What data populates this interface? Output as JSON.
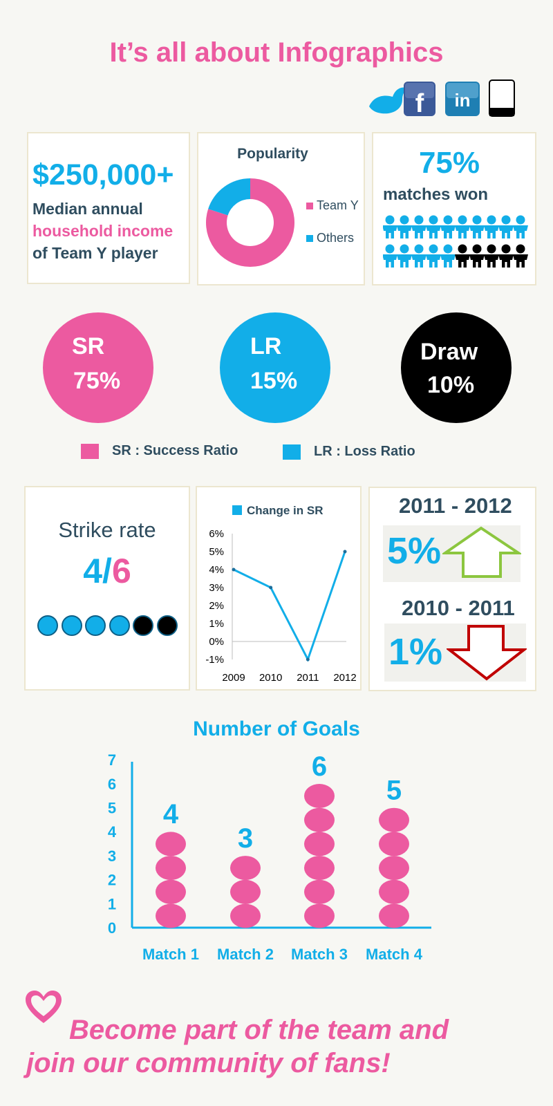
{
  "header": {
    "title": "It’s all about Infographics",
    "social_icons": [
      "bird-icon",
      "facebook-icon",
      "linkedin-icon",
      "tablet-icon"
    ],
    "facebook_glyph": "f",
    "linkedin_glyph": "in"
  },
  "income": {
    "amount": "$250,000+",
    "line1": "Median annual",
    "line2": "household income",
    "line3": "of Team Y player"
  },
  "popularity": {
    "title": "Popularity",
    "legend": [
      "Team Y",
      "Others"
    ]
  },
  "matches": {
    "percent": "75%",
    "label": "matches won",
    "won_fraction": 0.75
  },
  "ratios": [
    {
      "label": "SR",
      "value": "75%",
      "color": "#ec5aa0"
    },
    {
      "label": "LR",
      "value": "15%",
      "color": "#12aee8"
    },
    {
      "label": "Draw",
      "value": "10%",
      "color": "#000000"
    }
  ],
  "ratio_key": {
    "sr": "SR : Success Ratio",
    "lr": "LR : Loss Ratio"
  },
  "strike": {
    "label": "Strike rate",
    "num": "4",
    "slash": "/",
    "den": "6"
  },
  "trend": [
    {
      "period": "2011 - 2012",
      "value": "5%",
      "direction": "up",
      "arrow_color": "#8cc63f"
    },
    {
      "period": "2010 - 2011",
      "value": "1%",
      "direction": "down",
      "arrow_color": "#c00000"
    }
  ],
  "colors": {
    "pink": "#ec5aa0",
    "blue": "#12aee8",
    "black": "#000000"
  },
  "chart_data": [
    {
      "type": "pie",
      "title": "Popularity",
      "categories": [
        "Team Y",
        "Others"
      ],
      "values": [
        80,
        20
      ],
      "colors": [
        "#ec5aa0",
        "#12aee8"
      ],
      "legend": "right"
    },
    {
      "type": "line",
      "legend_label": "Change in SR",
      "x": [
        "2009",
        "2010",
        "2011",
        "2012"
      ],
      "y": [
        4,
        3,
        -1,
        5
      ],
      "ylim": [
        -1,
        6
      ],
      "yticks": [
        "-1%",
        "0%",
        "1%",
        "2%",
        "3%",
        "4%",
        "5%",
        "6%"
      ],
      "color": "#12aee8",
      "legend": "top"
    },
    {
      "type": "bar",
      "title": "Number of Goals",
      "categories": [
        "Match 1",
        "Match 2",
        "Match 3",
        "Match 4"
      ],
      "values": [
        4,
        3,
        6,
        5
      ],
      "ylim": [
        0,
        7
      ],
      "yticks": [
        "0",
        "1",
        "2",
        "3",
        "4",
        "5",
        "6",
        "7"
      ],
      "color": "#ec5aa0"
    }
  ],
  "footer": {
    "line1": "Become part of the team and",
    "line2": "join our community of fans!"
  }
}
